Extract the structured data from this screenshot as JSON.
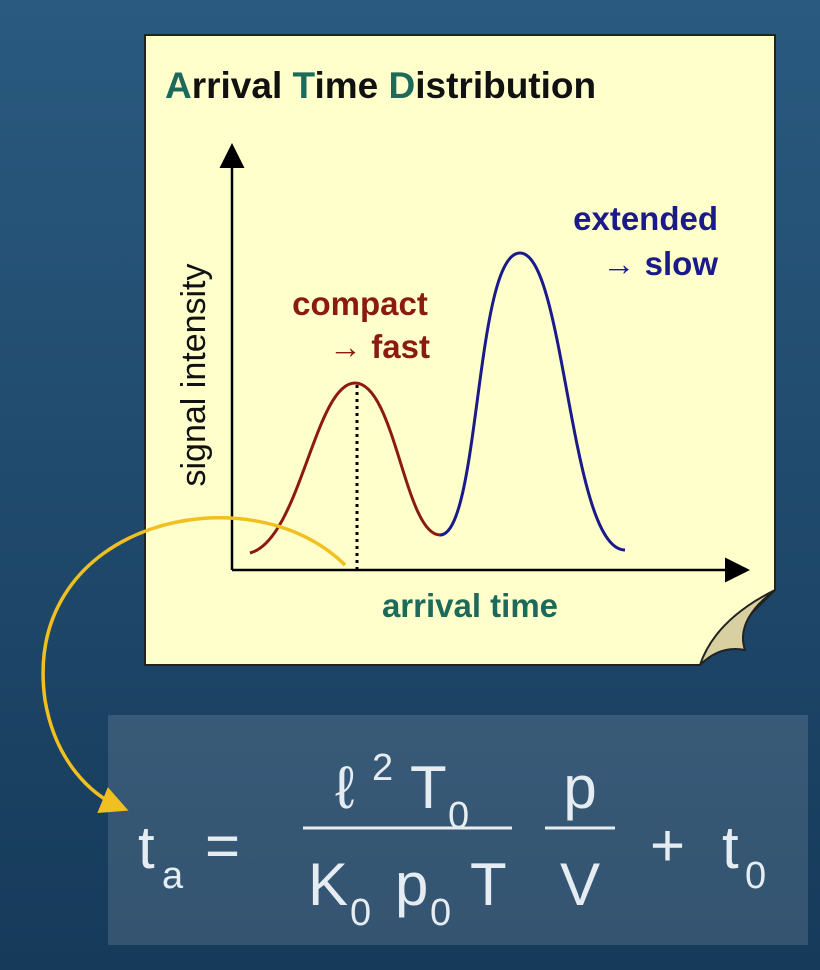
{
  "title": {
    "parts": [
      "A",
      "rrival ",
      "T",
      "ime ",
      "D",
      "istribution"
    ]
  },
  "y_axis_label": "signal intensity",
  "x_axis_label": "arrival time",
  "peaks": [
    {
      "line1": "compact",
      "line2": "→ fast"
    },
    {
      "line1": "extended",
      "line2": "→ slow"
    }
  ],
  "formula": {
    "lhs": {
      "symbol": "t",
      "sub": "a"
    },
    "equals": "=",
    "numerator": {
      "ell": "ℓ",
      "sup": "2",
      "T": "T",
      "T_sub": "0"
    },
    "denominator": {
      "K": "K",
      "K_sub": "0",
      "p": "p",
      "p_sub": "0",
      "T": "T"
    },
    "fraction2": {
      "num": "p",
      "den": "V"
    },
    "plus": "+",
    "offset": {
      "symbol": "t",
      "sub": "0"
    }
  }
}
